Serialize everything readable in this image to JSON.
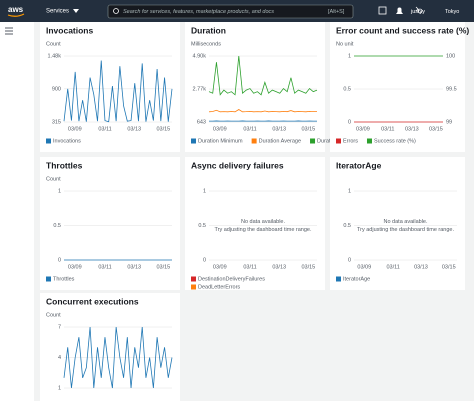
{
  "nav": {
    "logo": "aws",
    "services": "Services",
    "search_placeholder": "Search for services, features, marketplace products, and docs",
    "shortcut": "[Alt+S]",
    "user": "justyy",
    "region": "Tokyo"
  },
  "widgets": [
    {
      "title": "Invocations",
      "unit": "Count",
      "type": "line",
      "ylim": [
        315,
        1480
      ],
      "yticks": [
        315,
        900,
        {
          "value": 1480,
          "label": "1.48k"
        }
      ],
      "xlabels": [
        "03/09",
        "03/11",
        "03/13",
        "03/15"
      ],
      "series": [
        {
          "name": "Invocations",
          "color": "#1f77b4",
          "values": [
            330,
            900,
            340,
            1200,
            330,
            700,
            320,
            1100,
            800,
            330,
            1400,
            340,
            320,
            950,
            330,
            1300,
            600,
            330,
            340,
            1000,
            330,
            1350,
            320,
            700,
            340,
            1250,
            330,
            1100,
            320,
            900
          ]
        }
      ]
    },
    {
      "title": "Duration",
      "unit": "Milliseconds",
      "type": "line",
      "ylim": [
        643,
        4900
      ],
      "yticks": [
        643,
        {
          "value": 2770,
          "label": "2.77k"
        },
        {
          "value": 4900,
          "label": "4.90k"
        }
      ],
      "xlabels": [
        "03/09",
        "03/11",
        "03/13",
        "03/15"
      ],
      "series": [
        {
          "name": "Duration Minimum",
          "color": "#1f77b4",
          "values": [
            700,
            700,
            710,
            700,
            700,
            705,
            700,
            700,
            700,
            710,
            700,
            700,
            700,
            705,
            700,
            700,
            710,
            700,
            700,
            700,
            705,
            700,
            700,
            700,
            710,
            700,
            700,
            705,
            700,
            700
          ]
        },
        {
          "name": "Duration Average",
          "color": "#ff7f0e",
          "values": [
            1300,
            1320,
            1400,
            1300,
            1310,
            1300,
            1320,
            1300,
            1450,
            1300,
            1310,
            1330,
            1300,
            1310,
            1300,
            1350,
            1300,
            1320,
            1310,
            1300,
            1330,
            1310,
            1380,
            1300,
            1320,
            1310,
            1300,
            1330,
            1310,
            1320
          ]
        },
        {
          "name": "Duration Maximum",
          "color": "#2ca02c",
          "values": [
            2600,
            2500,
            4500,
            2400,
            2700,
            2500,
            2600,
            2400,
            4900,
            2500,
            2700,
            2800,
            2500,
            2600,
            2400,
            3200,
            2500,
            2700,
            2600,
            2500,
            2800,
            2600,
            3500,
            2500,
            2700,
            2600,
            2500,
            2800,
            2600,
            2700
          ]
        }
      ]
    },
    {
      "title": "Error count and success rate (%)",
      "unit": "No unit",
      "type": "line",
      "ylim": [
        0,
        1
      ],
      "yticks": [
        0,
        0.5,
        1
      ],
      "y2lim": [
        99,
        100
      ],
      "y2ticks": [
        99,
        99.5,
        100
      ],
      "xlabels": [
        "03/09",
        "03/11",
        "03/13",
        "03/15"
      ],
      "series": [
        {
          "name": "Errors",
          "color": "#d62728",
          "values": [
            0,
            0,
            0,
            0,
            0,
            0,
            0,
            0,
            0,
            0
          ]
        },
        {
          "name": "Success rate (%)",
          "color": "#2ca02c",
          "axis": "y2",
          "values": [
            100,
            100,
            100,
            100,
            100,
            100,
            100,
            100,
            100,
            100
          ]
        }
      ]
    },
    {
      "title": "Throttles",
      "unit": "Count",
      "type": "line",
      "ylim": [
        0,
        1
      ],
      "yticks": [
        0,
        0.5,
        1
      ],
      "xlabels": [
        "03/09",
        "03/11",
        "03/13",
        "03/15"
      ],
      "series": [
        {
          "name": "Throttles",
          "color": "#1f77b4",
          "values": [
            0,
            0,
            0,
            0,
            0,
            0,
            0,
            0,
            0,
            0
          ]
        }
      ]
    },
    {
      "title": "Async delivery failures",
      "type": "line",
      "ylim": [
        0,
        1
      ],
      "yticks": [
        0,
        0.5,
        1
      ],
      "xlabels": [
        "03/09",
        "03/11",
        "03/13",
        "03/15"
      ],
      "message": "No data available.",
      "hint": "Try adjusting the dashboard time range.",
      "series": [
        {
          "name": "DestinationDeliveryFailures",
          "color": "#d62728",
          "values": []
        },
        {
          "name": "DeadLetterErrors",
          "color": "#ff7f0e",
          "values": []
        }
      ]
    },
    {
      "title": "IteratorAge",
      "type": "line",
      "ylim": [
        0,
        1
      ],
      "yticks": [
        0,
        0.5,
        1
      ],
      "xlabels": [
        "03/09",
        "03/11",
        "03/13",
        "03/15"
      ],
      "message": "No data available.",
      "hint": "Try adjusting the dashboard time range.",
      "series": [
        {
          "name": "IteratorAge",
          "color": "#1f77b4",
          "values": []
        }
      ]
    },
    {
      "title": "Concurrent executions",
      "unit": "Count",
      "type": "line",
      "ylim": [
        1,
        7
      ],
      "yticks": [
        1,
        4,
        7
      ],
      "series": [
        {
          "color": "#1f77b4",
          "values": [
            2,
            5,
            1,
            4,
            6,
            2,
            3,
            7,
            1,
            5,
            2,
            6,
            3,
            1,
            7,
            4,
            2,
            6,
            1,
            5,
            3,
            7,
            2,
            4,
            1,
            6,
            3,
            5,
            2,
            4
          ]
        }
      ]
    }
  ]
}
